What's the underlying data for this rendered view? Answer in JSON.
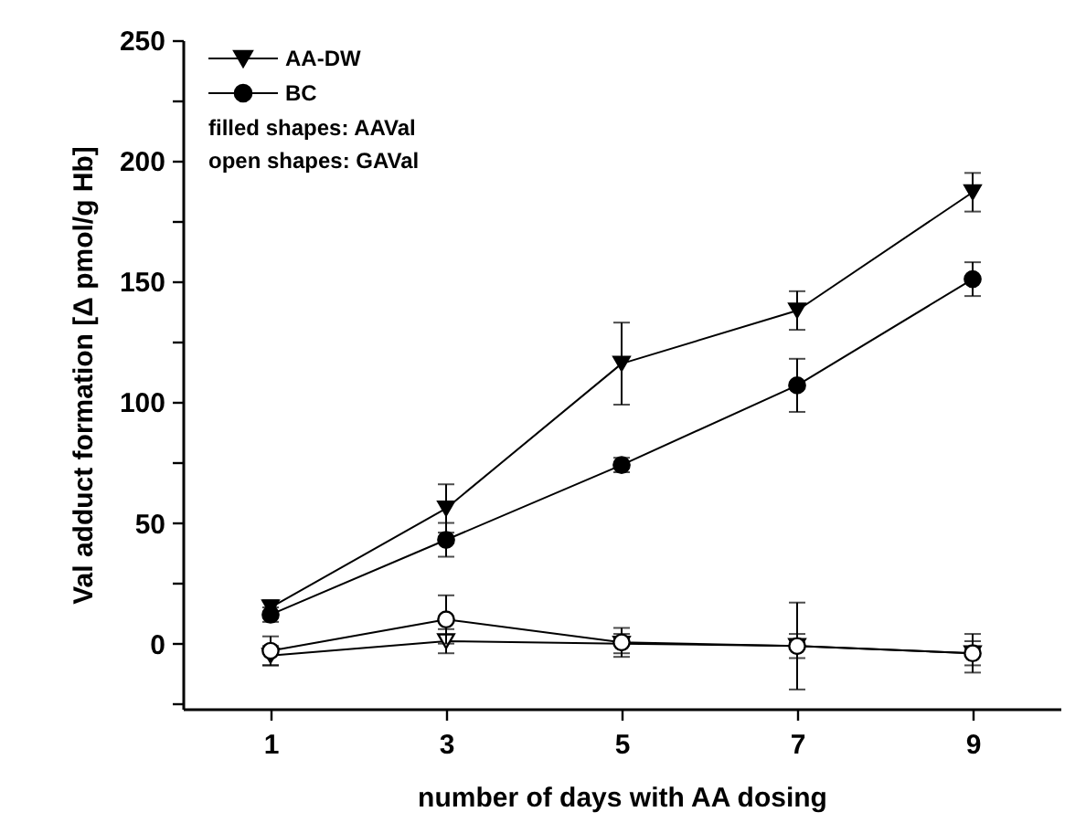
{
  "chart_data": {
    "type": "line",
    "xlabel": "number of days with AA dosing",
    "ylabel": "Val adduct formation [Δ pmol/g Hb]",
    "x": [
      1,
      3,
      5,
      7,
      9
    ],
    "series": [
      {
        "name": "AA-DW",
        "color": "#000000",
        "marker": "triangle",
        "values": [
          15,
          56,
          116,
          138,
          187
        ],
        "errors": [
          3,
          10,
          17,
          8,
          8
        ]
      },
      {
        "name": "BC",
        "color": "#000000",
        "marker": "circle",
        "values": [
          12,
          43,
          74,
          107,
          151
        ],
        "errors": [
          3,
          7,
          3,
          11,
          7
        ]
      },
      {
        "color": "#000000",
        "colors": [
          "#ffffff",
          "#ffffff",
          "#ffffff",
          "#ffffff",
          "#ffffff"
        ],
        "marker": "triangle",
        "values": [
          -5,
          1,
          0,
          -1,
          -4
        ],
        "errors": [
          4,
          5,
          4,
          5,
          5
        ]
      },
      {
        "color": "#000000",
        "colors": [
          "#ffffff",
          "#ffffff",
          "#ffffff",
          "#ffffff",
          "#ffffff"
        ],
        "marker": "circle",
        "values": [
          -3,
          10,
          0.5,
          -1,
          -4
        ],
        "errors": [
          6,
          10,
          6,
          18,
          8
        ]
      }
    ],
    "annotations": [
      "filled shapes: AAVal",
      "open shapes: GAVal"
    ],
    "xlim": [
      0,
      10
    ],
    "xticks": [
      1,
      3,
      5,
      7,
      9
    ],
    "ylim": [
      -27,
      250
    ],
    "yticks": [
      {
        "value": -25,
        "label": null
      },
      0,
      {
        "value": 25,
        "label": null
      },
      50,
      {
        "value": 75,
        "label": null
      },
      100,
      {
        "value": 125,
        "label": null
      },
      150,
      {
        "value": 175,
        "label": null
      },
      200,
      {
        "value": 225,
        "label": null
      },
      250
    ],
    "grid": false,
    "legend": "top left",
    "line_style": "solid"
  }
}
